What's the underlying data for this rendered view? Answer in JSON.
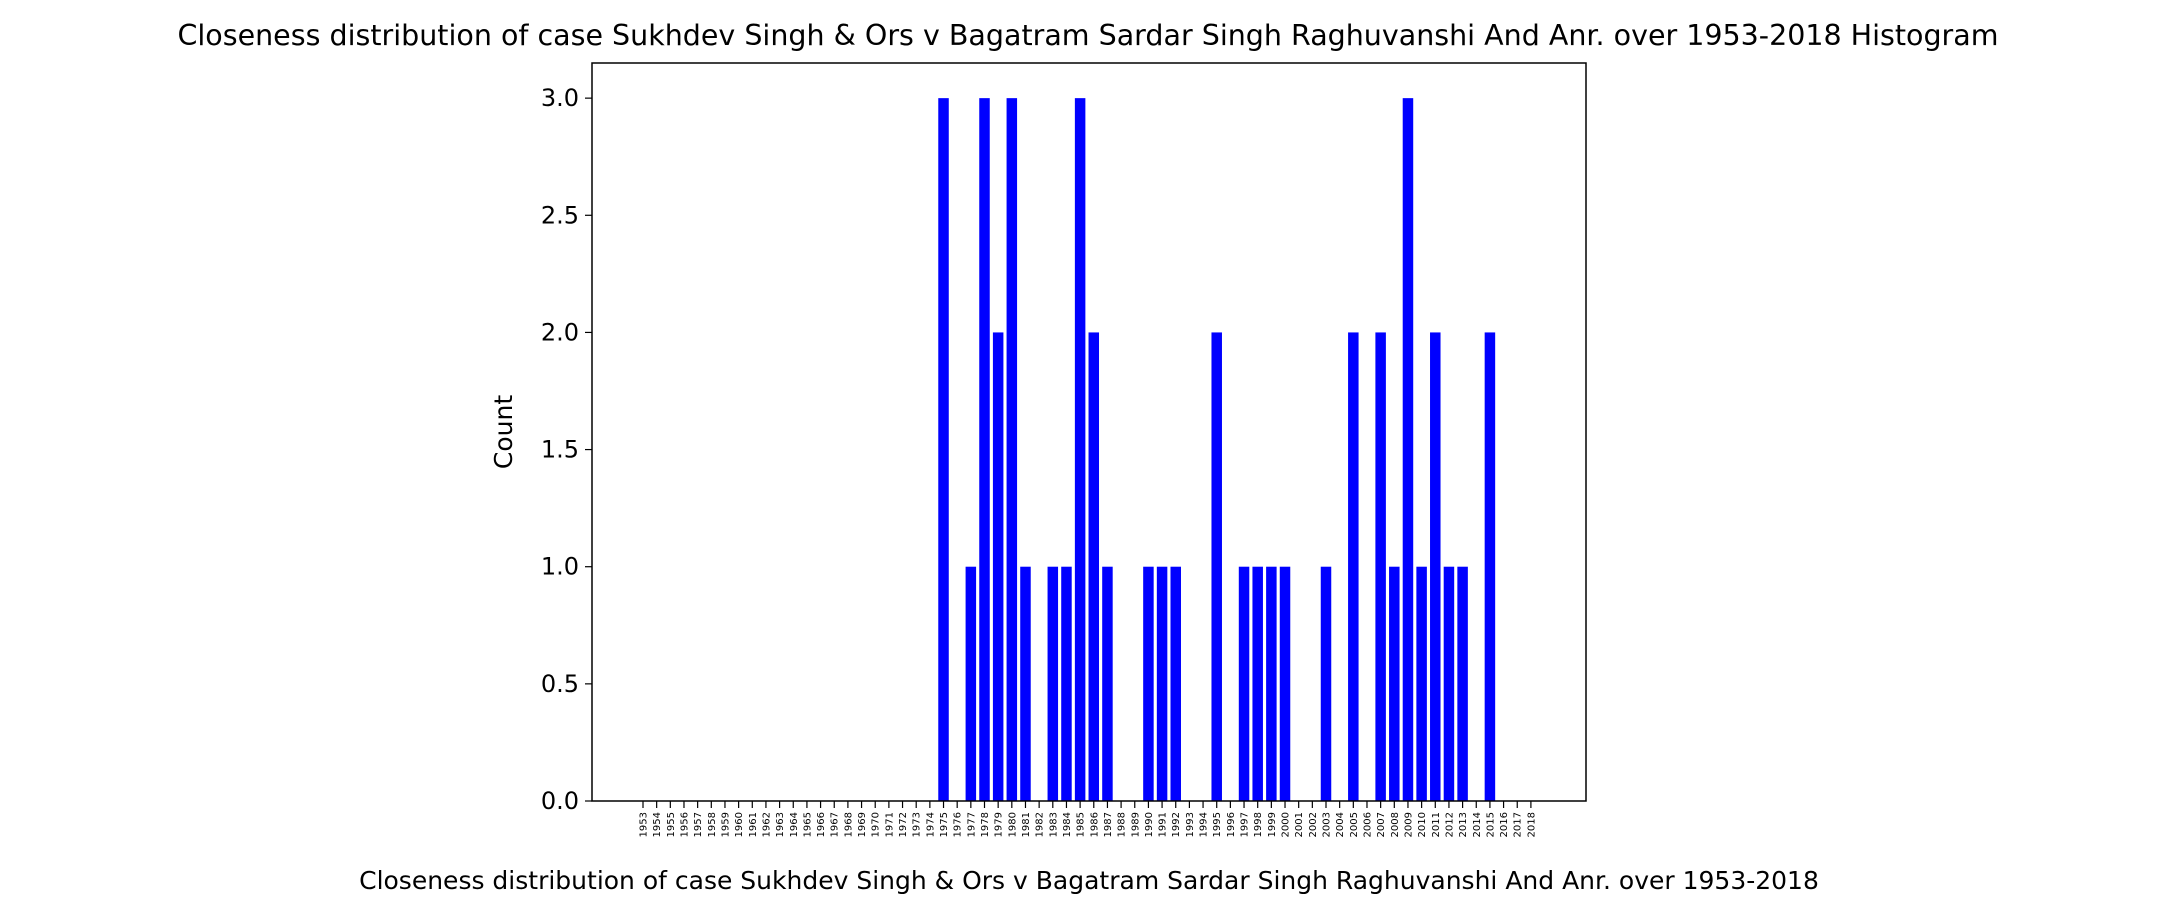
{
  "chart_data": {
    "type": "bar",
    "title": "Closeness distribution of case Sukhdev Singh & Ors v Bagatram Sardar Singh Raghuvanshi And Anr. over 1953-2018 Histogram",
    "xlabel": "Closeness distribution of case Sukhdev Singh & Ors v Bagatram Sardar Singh Raghuvanshi And Anr. over 1953-2018",
    "ylabel": "Count",
    "ylim": [
      0,
      3.15
    ],
    "yticks": [
      "0.0",
      "0.5",
      "1.0",
      "1.5",
      "2.0",
      "2.5",
      "3.0"
    ],
    "bar_color": "#0000ff",
    "grid": false,
    "categories": [
      "1953",
      "1954",
      "1955",
      "1956",
      "1957",
      "1958",
      "1959",
      "1960",
      "1961",
      "1962",
      "1963",
      "1964",
      "1965",
      "1966",
      "1967",
      "1968",
      "1969",
      "1970",
      "1971",
      "1972",
      "1973",
      "1974",
      "1975",
      "1976",
      "1977",
      "1978",
      "1979",
      "1980",
      "1981",
      "1982",
      "1983",
      "1984",
      "1985",
      "1986",
      "1987",
      "1988",
      "1989",
      "1990",
      "1991",
      "1992",
      "1993",
      "1994",
      "1995",
      "1996",
      "1997",
      "1998",
      "1999",
      "2000",
      "2001",
      "2002",
      "2003",
      "2004",
      "2005",
      "2006",
      "2007",
      "2008",
      "2009",
      "2010",
      "2011",
      "2012",
      "2013",
      "2014",
      "2015",
      "2016",
      "2017",
      "2018"
    ],
    "values": [
      0,
      0,
      0,
      0,
      0,
      0,
      0,
      0,
      0,
      0,
      0,
      0,
      0,
      0,
      0,
      0,
      0,
      0,
      0,
      0,
      0,
      0,
      3,
      0,
      1,
      3,
      2,
      3,
      1,
      0,
      1,
      1,
      3,
      2,
      1,
      0,
      0,
      1,
      1,
      1,
      0,
      0,
      2,
      0,
      1,
      1,
      1,
      1,
      0,
      0,
      1,
      0,
      2,
      0,
      2,
      1,
      3,
      1,
      2,
      1,
      1,
      0,
      2,
      0,
      0,
      0
    ]
  }
}
